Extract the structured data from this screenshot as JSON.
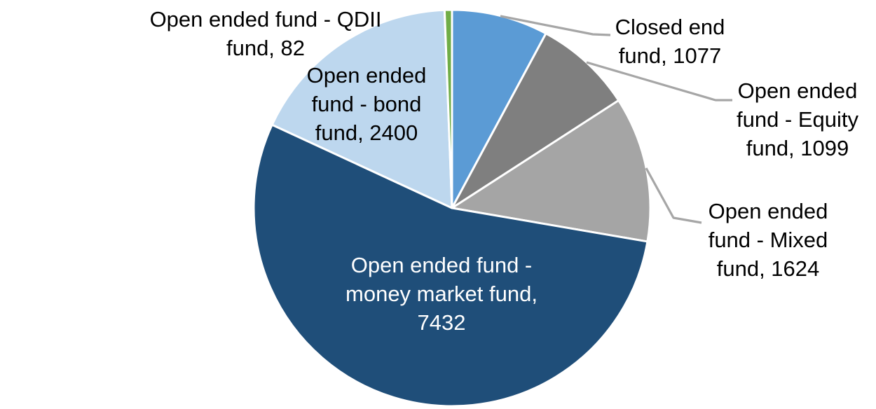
{
  "page": {
    "background": "#FFFFFF"
  },
  "chart_data": {
    "type": "pie",
    "legend": "none",
    "data_labels": "category name, value",
    "start_angle_deg": 0,
    "direction": "clockwise",
    "total": 13714,
    "slice_border_color": "#FFFFFF",
    "leader_line_color": "#A6A6A6",
    "slices": [
      {
        "id": "closed-end-fund",
        "label": "Closed end fund",
        "value": 1077,
        "color": "#5B9BD5",
        "label_color": "#000000",
        "label_placement": "outside-right-with-leader",
        "label_lines": [
          "Closed end",
          "fund, 1077"
        ]
      },
      {
        "id": "open-ended-equity-fund",
        "label": "Open ended fund - Equity fund",
        "value": 1099,
        "color": "#7F7F7F",
        "label_color": "#000000",
        "label_placement": "outside-right-with-leader",
        "label_lines": [
          "Open ended",
          "fund - Equity",
          "fund, 1099"
        ]
      },
      {
        "id": "open-ended-mixed-fund",
        "label": "Open ended fund - Mixed fund",
        "value": 1624,
        "color": "#A5A5A5",
        "label_color": "#000000",
        "label_placement": "outside-right-with-leader",
        "label_lines": [
          "Open ended",
          "fund - Mixed",
          "fund, 1624"
        ]
      },
      {
        "id": "open-ended-money-market-fund",
        "label": "Open ended fund - money market fund",
        "value": 7432,
        "color": "#1F4E79",
        "label_color": "#FFFFFF",
        "label_placement": "inside",
        "label_lines": [
          "Open ended fund -",
          "money market fund,",
          "7432"
        ]
      },
      {
        "id": "open-ended-bond-fund",
        "label": "Open ended fund - bond fund",
        "value": 2400,
        "color": "#BDD7EE",
        "label_color": "#000000",
        "label_placement": "outside-top-left",
        "label_lines": [
          "Open ended",
          "fund - bond",
          "fund, 2400"
        ]
      },
      {
        "id": "open-ended-qdii-fund",
        "label": "Open ended fund - QDII fund",
        "value": 82,
        "color": "#70AD47",
        "label_color": "#000000",
        "label_placement": "outside-top-left",
        "label_lines": [
          "Open ended fund - QDII",
          "fund, 82"
        ]
      }
    ]
  }
}
